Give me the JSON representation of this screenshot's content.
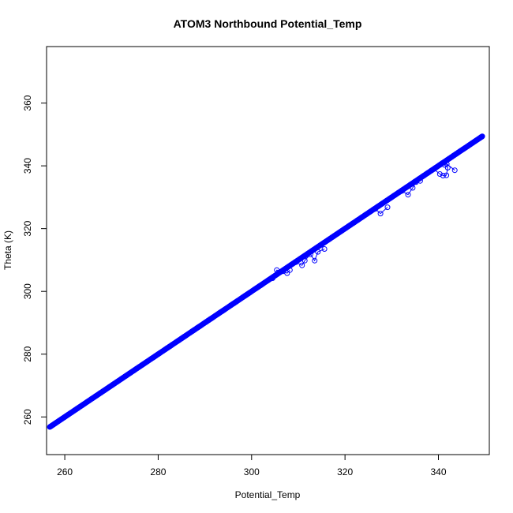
{
  "chart_data": {
    "type": "scatter",
    "title": "ATOM3 Northbound Potential_Temp",
    "xlabel": "Potential_Temp",
    "ylabel": "Theta (K)",
    "xlim": [
      256.1,
      350.9
    ],
    "ylim": [
      248.0,
      378.0
    ],
    "xticks": [
      "260",
      "280",
      "300",
      "320",
      "340"
    ],
    "yticks": [
      "260",
      "280",
      "300",
      "320",
      "340",
      "360"
    ],
    "xtick_values": [
      260,
      280,
      300,
      320,
      340
    ],
    "ytick_values": [
      260,
      280,
      300,
      320,
      340,
      360
    ],
    "grid": false,
    "legend": "none",
    "marker": "open-circle",
    "connected": true,
    "color": "#0000ff",
    "series": [
      {
        "x": [
          256.8,
          257.5,
          258.3,
          259.2,
          260.1,
          261.0,
          262.1,
          263.0,
          264.2,
          265.3,
          266.4,
          267.5,
          268.6,
          269.6,
          270.5,
          271.6,
          272.7,
          273.8,
          274.9,
          275.9,
          277.0,
          278.1,
          279.3,
          280.4,
          281.6,
          282.8,
          284.0,
          285.1,
          286.3,
          287.5,
          288.6,
          289.8,
          291.0,
          292.2,
          293.4,
          294.6,
          295.8,
          297.0,
          298.2,
          299.4,
          300.6,
          301.8,
          303.0,
          304.2,
          305.2,
          306.3,
          307.4,
          308.5,
          309.6,
          310.7,
          311.8,
          312.9,
          314.0,
          315.1,
          316.2,
          317.3,
          318.4,
          319.5,
          320.6,
          321.7,
          322.8,
          323.9,
          325.0,
          326.1,
          327.2,
          328.3,
          329.4,
          330.5,
          331.6,
          332.7,
          333.8,
          334.9,
          336.0,
          337.1,
          338.2,
          339.3,
          340.4,
          341.4,
          342.4,
          343.4,
          344.4,
          345.4,
          346.4,
          347.3,
          348.2,
          349.0,
          349.4
        ],
        "y": [
          256.8,
          257.5,
          258.3,
          259.2,
          260.1,
          261.0,
          262.1,
          263.0,
          264.2,
          265.3,
          266.4,
          267.5,
          268.6,
          269.6,
          270.5,
          271.6,
          272.7,
          273.8,
          274.9,
          275.9,
          277.0,
          278.1,
          279.3,
          280.4,
          281.6,
          282.8,
          284.0,
          285.1,
          286.3,
          287.5,
          288.6,
          289.8,
          291.0,
          292.2,
          293.4,
          294.6,
          295.8,
          297.0,
          298.2,
          299.4,
          300.6,
          301.8,
          303.0,
          304.2,
          305.2,
          306.3,
          307.4,
          308.5,
          309.6,
          310.7,
          311.8,
          312.9,
          314.0,
          315.1,
          316.2,
          317.3,
          318.4,
          319.5,
          320.6,
          321.7,
          322.8,
          323.9,
          325.0,
          326.1,
          327.2,
          328.3,
          329.4,
          330.5,
          331.6,
          332.7,
          333.8,
          334.9,
          336.0,
          337.1,
          338.2,
          339.3,
          340.4,
          341.4,
          342.4,
          343.4,
          344.4,
          345.4,
          346.4,
          347.3,
          348.2,
          349.0,
          349.4
        ]
      },
      {
        "x": [
          304.5,
          305.4,
          306.8,
          307.6,
          308.2
        ],
        "y": [
          304.2,
          306.8,
          306.4,
          305.8,
          306.8
        ]
      },
      {
        "x": [
          309.5,
          310.8,
          311.4,
          312.6,
          313.5,
          314.2,
          315.6
        ],
        "y": [
          309.3,
          308.3,
          309.8,
          311.8,
          309.8,
          312.6,
          313.5
        ]
      },
      {
        "x": [
          326.5,
          327.6,
          329.1
        ],
        "y": [
          326.3,
          324.8,
          326.8
        ]
      },
      {
        "x": [
          332.2,
          333.5,
          334.5,
          335.2,
          336.1
        ],
        "y": [
          332.0,
          330.8,
          333.0,
          334.8,
          335.2
        ]
      },
      {
        "x": [
          339.0,
          340.3,
          341.0,
          341.7,
          342.0,
          341.3,
          341.8,
          343.5
        ],
        "y": [
          339.0,
          337.4,
          336.9,
          337.0,
          339.4,
          340.3,
          340.6,
          338.6
        ]
      }
    ]
  }
}
